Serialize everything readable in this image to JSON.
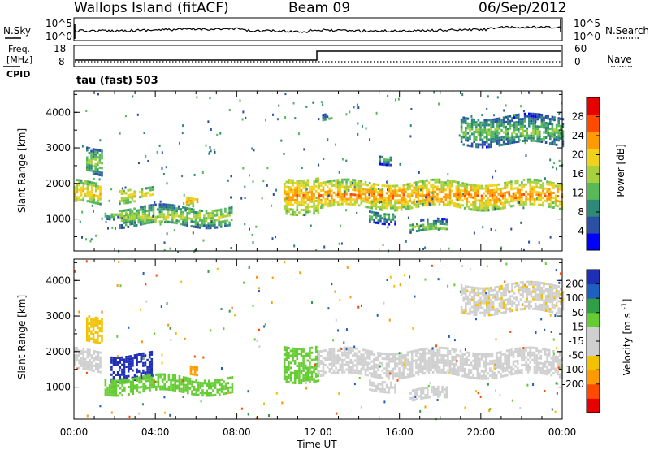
{
  "header": {
    "station": "Wallops Island (fitACF)",
    "beam": "Beam 09",
    "date": "06/Sep/2012"
  },
  "noise_panel": {
    "left_label": "N.Sky",
    "left_ticks": [
      "10^5",
      "10^0"
    ],
    "right_ticks": [
      "10^5",
      "10^0"
    ],
    "right_label": "N.Search"
  },
  "freq_panel": {
    "left_label_1": "Freq.",
    "left_label_2": "[MHz]",
    "left_ticks": [
      "18",
      "8"
    ],
    "cpid_label": "CPID",
    "right_ticks": [
      "60",
      "0"
    ],
    "right_label": "Nave",
    "cpid_text": "tau (fast) 503"
  },
  "colors": {
    "power_scale": [
      "#0000ff",
      "#2b4fa5",
      "#2e8a78",
      "#58b957",
      "#a6d13d",
      "#f0d21a",
      "#ff9a00",
      "#ff4b00",
      "#e60000"
    ],
    "velocity_scale": [
      "#e60000",
      "#ff4b00",
      "#ff9a00",
      "#f2c200",
      "#cfcfcf",
      "#cfcfcf",
      "#66cc33",
      "#2f9e44",
      "#1f5fbf",
      "#1e2fb6"
    ]
  },
  "chart_data": [
    {
      "type": "heatmap",
      "name": "power",
      "ylabel": "Slant Range [km]",
      "yticks": [
        "4000",
        "3000",
        "2000",
        "1000"
      ],
      "ylim": [
        100,
        4600
      ],
      "colorbar_label": "Power [dB]",
      "colorbar_ticks": [
        "28",
        "24",
        "20",
        "16",
        "12",
        "8",
        "4"
      ],
      "colorbar_range": [
        0,
        32
      ],
      "features": [
        {
          "t0": 0.0,
          "t1": 1.3,
          "r0": 1500,
          "r1": 2050,
          "level": 17
        },
        {
          "t0": 0.6,
          "t1": 1.4,
          "r0": 2300,
          "r1": 3000,
          "level": 10
        },
        {
          "t0": 2.2,
          "t1": 3.0,
          "r0": 1500,
          "r1": 1900,
          "level": 16
        },
        {
          "t0": 3.2,
          "t1": 3.9,
          "r0": 1600,
          "r1": 1850,
          "level": 15
        },
        {
          "t0": 1.5,
          "t1": 2.6,
          "r0": 1050,
          "r1": 1250,
          "level": 9
        },
        {
          "t0": 2.2,
          "t1": 7.8,
          "r0": 850,
          "r1": 1350,
          "level": 12
        },
        {
          "t0": 5.5,
          "t1": 6.1,
          "r0": 1400,
          "r1": 1650,
          "level": 17
        },
        {
          "t0": 10.3,
          "t1": 12.0,
          "r0": 1200,
          "r1": 2200,
          "level": 18
        },
        {
          "t0": 12.0,
          "t1": 24.0,
          "r0": 1350,
          "r1": 2050,
          "level": 19
        },
        {
          "t0": 16.5,
          "t1": 18.3,
          "r0": 650,
          "r1": 950,
          "level": 10
        },
        {
          "t0": 14.5,
          "t1": 15.8,
          "r0": 950,
          "r1": 1250,
          "level": 7
        },
        {
          "t0": 19.0,
          "t1": 24.0,
          "r0": 3100,
          "r1": 3900,
          "level": 9
        },
        {
          "t0": 15.0,
          "t1": 15.6,
          "r0": 2600,
          "r1": 2850,
          "level": 7
        },
        {
          "t0": 12.2,
          "t1": 12.7,
          "r0": 3750,
          "r1": 3950,
          "level": 6
        }
      ]
    },
    {
      "type": "heatmap",
      "name": "velocity",
      "ylabel": "Slant Range [km]",
      "yticks": [
        "4000",
        "3000",
        "2000",
        "1000"
      ],
      "ylim": [
        100,
        4600
      ],
      "xlabel": "Time UT",
      "xticks": [
        "00:00",
        "04:00",
        "08:00",
        "12:00",
        "16:00",
        "20:00",
        "00:00"
      ],
      "xlim": [
        0,
        24
      ],
      "colorbar_label": "Velocity [m s^-1]",
      "colorbar_ticks": [
        "200",
        "100",
        "50",
        "15",
        "-15",
        "-50",
        "-100",
        "-200"
      ],
      "features": [
        {
          "t0": 0.0,
          "t1": 1.3,
          "r0": 1500,
          "r1": 2050,
          "vel": 0
        },
        {
          "t0": 0.6,
          "t1": 1.4,
          "r0": 2300,
          "r1": 3000,
          "vel": -30
        },
        {
          "t0": 1.8,
          "t1": 3.8,
          "r0": 1250,
          "r1": 1950,
          "vel": 220
        },
        {
          "t0": 1.5,
          "t1": 7.8,
          "r0": 850,
          "r1": 1300,
          "vel": 60
        },
        {
          "t0": 5.7,
          "t1": 6.1,
          "r0": 1400,
          "r1": 1650,
          "vel": -60
        },
        {
          "t0": 10.3,
          "t1": 12.0,
          "r0": 1200,
          "r1": 2200,
          "vel": 40
        },
        {
          "t0": 12.0,
          "t1": 24.0,
          "r0": 1350,
          "r1": 2050,
          "vel": 0
        },
        {
          "t0": 16.5,
          "t1": 18.3,
          "r0": 650,
          "r1": 950,
          "vel": 0
        },
        {
          "t0": 14.5,
          "t1": 15.8,
          "r0": 950,
          "r1": 1250,
          "vel": 0
        },
        {
          "t0": 19.0,
          "t1": 24.0,
          "r0": 3100,
          "r1": 3900,
          "vel": -10
        }
      ]
    }
  ]
}
